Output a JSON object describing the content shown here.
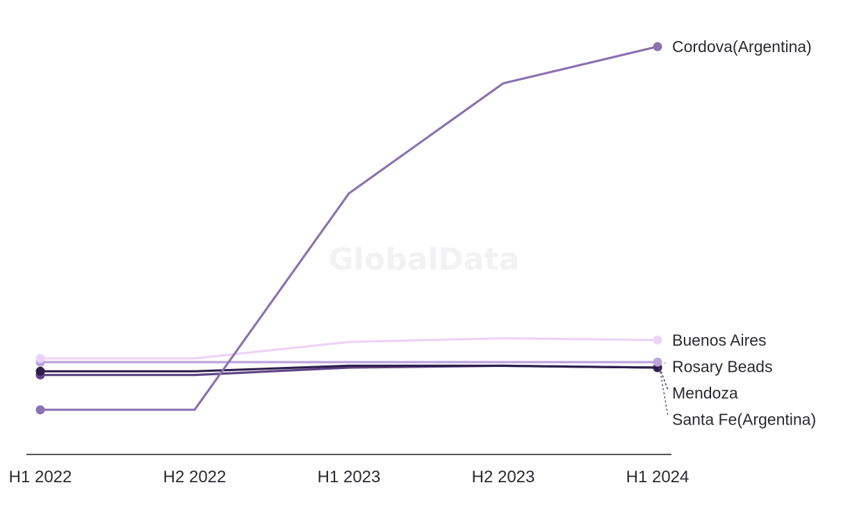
{
  "watermark": "GlobalData",
  "chart_data": {
    "type": "line",
    "categories": [
      "H1 2022",
      "H2 2022",
      "H1 2023",
      "H2 2023",
      "H1 2024"
    ],
    "ylim": [
      0,
      104
    ],
    "grid": false,
    "legend": "none (labels at line ends, right side)",
    "series": [
      {
        "name": "Cordova(Argentina)",
        "color": "#8a72b0",
        "values": [
          1,
          1,
          60,
          90,
          100
        ]
      },
      {
        "name": "Buenos Aires",
        "color": "#ecd3f8",
        "values": [
          15,
          15,
          19.5,
          20.5,
          20
        ]
      },
      {
        "name": "Rosary Beads",
        "color": "#bba3dc",
        "values": [
          14,
          14,
          14,
          14,
          14
        ]
      },
      {
        "name": "Mendoza",
        "color": "#2e1f4d",
        "values": [
          11.5,
          11.5,
          13,
          13,
          12.5
        ]
      },
      {
        "name": "Santa Fe(Argentina)",
        "color": "#5e4485",
        "values": [
          10.5,
          10.5,
          12.5,
          13,
          12.5
        ]
      }
    ]
  }
}
